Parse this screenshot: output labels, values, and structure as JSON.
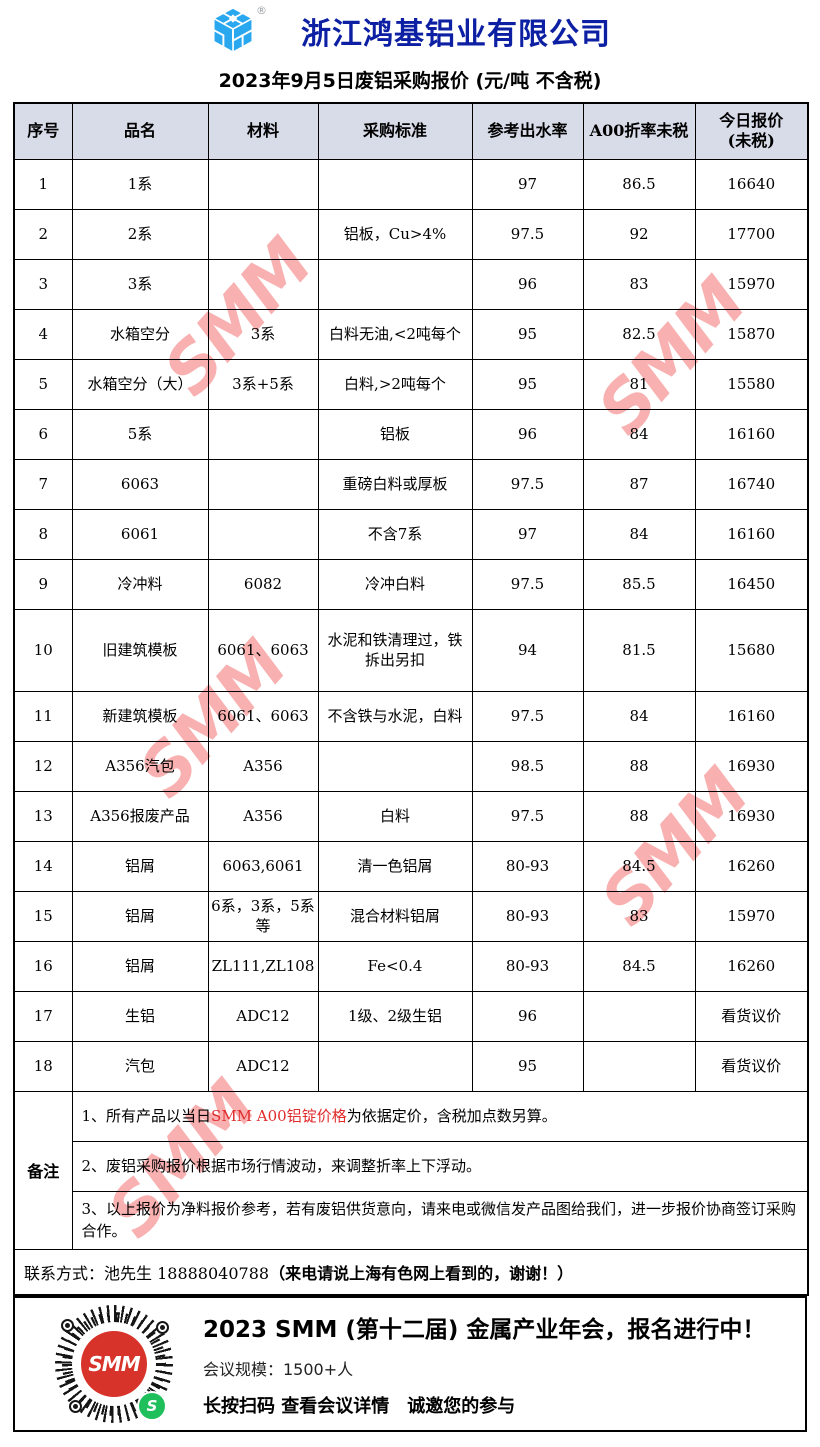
{
  "header": {
    "company": "浙江鸿基铝业有限公司",
    "registered_mark": "®",
    "subtitle": "2023年9月5日废铝采购报价 (元/吨 不含税)"
  },
  "table": {
    "columns": [
      "序号",
      "品名",
      "材料",
      "采购标准",
      "参考出水率",
      "A00折率未税",
      "今日报价\n(未税)"
    ],
    "rows": [
      {
        "no": "1",
        "name": "1系",
        "material": "",
        "standard": "",
        "yield": "97",
        "a00": "86.5",
        "price": "16640"
      },
      {
        "no": "2",
        "name": "2系",
        "material": "",
        "standard": "铝板，Cu>4%",
        "yield": "97.5",
        "a00": "92",
        "price": "17700"
      },
      {
        "no": "3",
        "name": "3系",
        "material": "",
        "standard": "",
        "yield": "96",
        "a00": "83",
        "price": "15970"
      },
      {
        "no": "4",
        "name": "水箱空分",
        "material": "3系",
        "standard": "白料无油,<2吨每个",
        "yield": "95",
        "a00": "82.5",
        "price": "15870"
      },
      {
        "no": "5",
        "name": "水箱空分（大）",
        "material": "3系+5系",
        "standard": "白料,>2吨每个",
        "yield": "95",
        "a00": "81",
        "price": "15580"
      },
      {
        "no": "6",
        "name": "5系",
        "material": "",
        "standard": "铝板",
        "yield": "96",
        "a00": "84",
        "price": "16160"
      },
      {
        "no": "7",
        "name": "6063",
        "material": "",
        "standard": "重磅白料或厚板",
        "yield": "97.5",
        "a00": "87",
        "price": "16740"
      },
      {
        "no": "8",
        "name": "6061",
        "material": "",
        "standard": "不含7系",
        "yield": "97",
        "a00": "84",
        "price": "16160"
      },
      {
        "no": "9",
        "name": "冷冲料",
        "material": "6082",
        "standard": "冷冲白料",
        "yield": "97.5",
        "a00": "85.5",
        "price": "16450"
      },
      {
        "no": "10",
        "name": "旧建筑模板",
        "material": "6061、6063",
        "standard": "水泥和铁清理过，铁拆出另扣",
        "yield": "94",
        "a00": "81.5",
        "price": "15680"
      },
      {
        "no": "11",
        "name": "新建筑模板",
        "material": "6061、6063",
        "standard": "不含铁与水泥，白料",
        "yield": "97.5",
        "a00": "84",
        "price": "16160"
      },
      {
        "no": "12",
        "name": "A356汽包",
        "material": "A356",
        "standard": "",
        "yield": "98.5",
        "a00": "88",
        "price": "16930"
      },
      {
        "no": "13",
        "name": "A356报废产品",
        "material": "A356",
        "standard": "白料",
        "yield": "97.5",
        "a00": "88",
        "price": "16930"
      },
      {
        "no": "14",
        "name": "铝屑",
        "material": "6063,6061",
        "standard": "清一色铝屑",
        "yield": "80-93",
        "a00": "84.5",
        "price": "16260"
      },
      {
        "no": "15",
        "name": "铝屑",
        "material": "6系，3系，5系等",
        "standard": "混合材料铝屑",
        "yield": "80-93",
        "a00": "83",
        "price": "15970"
      },
      {
        "no": "16",
        "name": "铝屑",
        "material": "ZL111,ZL108",
        "standard": "Fe<0.4",
        "yield": "80-93",
        "a00": "84.5",
        "price": "16260"
      },
      {
        "no": "17",
        "name": "生铝",
        "material": "ADC12",
        "standard": "1级、2级生铝",
        "yield": "96",
        "a00": "",
        "price": "看货议价"
      },
      {
        "no": "18",
        "name": "汽包",
        "material": "ADC12",
        "standard": "",
        "yield": "95",
        "a00": "",
        "price": "看货议价"
      }
    ]
  },
  "remarks": {
    "label": "备注",
    "note1": {
      "prefix": "1、所有产品以当日",
      "highlight": "SMM A00铝锭价格",
      "suffix": "为依据定价，含税加点数另算。"
    },
    "note2": "2、废铝采购报价根据市场行情波动，来调整折率上下浮动。",
    "note3": "3、以上报价为净料报价参考，若有废铝供货意向，请来电或微信发产品图给我们，进一步报价协商签订采购合作。"
  },
  "contact": {
    "prefix": "联系方式：池先生 18888040788",
    "bold": "（来电请说上海有色网上看到的，谢谢！）"
  },
  "footer": {
    "title": "2023 SMM (第十二届) 金属产业年会，报名进行中！",
    "scale": "会议规模：1500+人",
    "cta": "长按扫码 查看会议详情　诚邀您的参与",
    "qr_label": "SMM",
    "wechat_glyph": "S"
  },
  "watermark": {
    "text": "SMM"
  },
  "colors": {
    "title_blue": "#0d1fa3",
    "header_bg": "#D8DCE9",
    "note_red": "#E02B2B",
    "qr_red": "#D8332A",
    "wechat_green": "#1FBF5B",
    "wm_pink": "#F7A3A3",
    "logo_blue": "#29A8F0"
  }
}
